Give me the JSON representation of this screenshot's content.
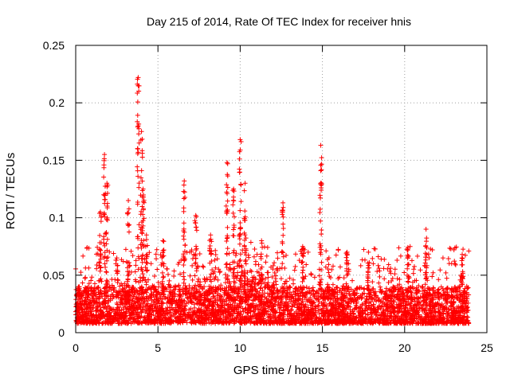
{
  "chart_data": {
    "type": "scatter",
    "title": "Day 215 of 2014, Rate Of TEC Index for receiver hnis",
    "xlabel": "GPS time / hours",
    "ylabel": "ROTI / TECUs",
    "xlim": [
      0,
      25
    ],
    "ylim": [
      0,
      0.25
    ],
    "x_ticks": [
      0,
      5,
      10,
      15,
      20,
      25
    ],
    "y_ticks": [
      0,
      0.05,
      0.1,
      0.15,
      0.2,
      0.25
    ],
    "x_tick_labels": [
      "0",
      "5",
      "10",
      "15",
      "20",
      "25"
    ],
    "y_tick_labels": [
      "0",
      "0.05",
      "0.1",
      "0.15",
      "0.2",
      "0.25"
    ],
    "grid": true,
    "marker": "+",
    "series": [
      {
        "name": "ROTI",
        "color": "#ff0000",
        "data_extent_x": [
          0,
          23.9
        ],
        "baseline_band": [
          0.008,
          0.04
        ],
        "spikes": [
          {
            "x": 0.2,
            "y": 0.04
          },
          {
            "x": 1.5,
            "y": 0.105
          },
          {
            "x": 1.75,
            "y": 0.155
          },
          {
            "x": 1.9,
            "y": 0.13
          },
          {
            "x": 2.5,
            "y": 0.065
          },
          {
            "x": 3.2,
            "y": 0.115
          },
          {
            "x": 3.8,
            "y": 0.222
          },
          {
            "x": 4.0,
            "y": 0.175
          },
          {
            "x": 4.1,
            "y": 0.125
          },
          {
            "x": 4.3,
            "y": 0.085
          },
          {
            "x": 5.3,
            "y": 0.08
          },
          {
            "x": 6.6,
            "y": 0.132
          },
          {
            "x": 7.3,
            "y": 0.102
          },
          {
            "x": 8.2,
            "y": 0.085
          },
          {
            "x": 9.2,
            "y": 0.148
          },
          {
            "x": 9.6,
            "y": 0.125
          },
          {
            "x": 10.0,
            "y": 0.168
          },
          {
            "x": 10.3,
            "y": 0.13
          },
          {
            "x": 11.3,
            "y": 0.08
          },
          {
            "x": 12.6,
            "y": 0.113
          },
          {
            "x": 13.8,
            "y": 0.075
          },
          {
            "x": 14.9,
            "y": 0.163
          },
          {
            "x": 16.5,
            "y": 0.07
          },
          {
            "x": 17.8,
            "y": 0.07
          },
          {
            "x": 20.2,
            "y": 0.072
          },
          {
            "x": 21.3,
            "y": 0.09
          },
          {
            "x": 23.5,
            "y": 0.068
          }
        ]
      }
    ]
  }
}
